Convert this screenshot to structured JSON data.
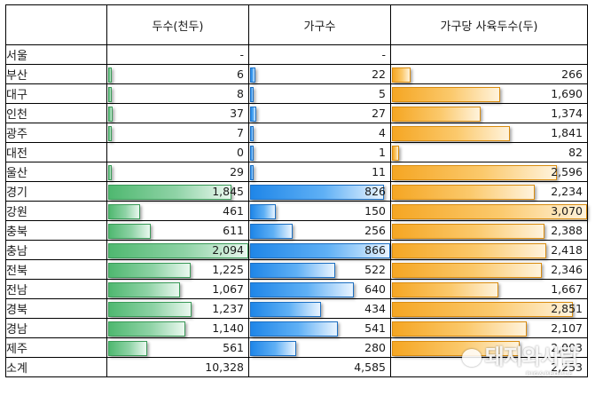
{
  "headers": [
    "",
    "두수(천두)",
    "가구수",
    "가구당 사육두수(두)"
  ],
  "rows": [
    {
      "region": "서울",
      "heads": "-",
      "households": "-",
      "per": ""
    },
    {
      "region": "부산",
      "heads": "6",
      "households": "22",
      "per": "266"
    },
    {
      "region": "대구",
      "heads": "8",
      "households": "5",
      "per": "1,690"
    },
    {
      "region": "인천",
      "heads": "37",
      "households": "27",
      "per": "1,374"
    },
    {
      "region": "광주",
      "heads": "7",
      "households": "4",
      "per": "1,841"
    },
    {
      "region": "대전",
      "heads": "0",
      "households": "1",
      "per": "82"
    },
    {
      "region": "울산",
      "heads": "29",
      "households": "11",
      "per": "2,596"
    },
    {
      "region": "경기",
      "heads": "1,845",
      "households": "826",
      "per": "2,234"
    },
    {
      "region": "강원",
      "heads": "461",
      "households": "150",
      "per": "3,070"
    },
    {
      "region": "충북",
      "heads": "611",
      "households": "256",
      "per": "2,388"
    },
    {
      "region": "충남",
      "heads": "2,094",
      "households": "866",
      "per": "2,418"
    },
    {
      "region": "전북",
      "heads": "1,225",
      "households": "522",
      "per": "2,346"
    },
    {
      "region": "전남",
      "heads": "1,067",
      "households": "640",
      "per": "1,667"
    },
    {
      "region": "경북",
      "heads": "1,237",
      "households": "434",
      "per": "2,851"
    },
    {
      "region": "경남",
      "heads": "1,140",
      "households": "541",
      "per": "2,107"
    },
    {
      "region": "제주",
      "heads": "561",
      "households": "280",
      "per": "2,003"
    },
    {
      "region": "소계",
      "heads": "10,328",
      "households": "4,585",
      "per": "2,253"
    }
  ],
  "data_bars": {
    "heads": {
      "color": "#4fb870",
      "max": 2094,
      "bar_rows": 16
    },
    "households": {
      "color": "#1f86e8",
      "max": 866,
      "bar_rows": 16
    },
    "per": {
      "color": "#f5a623",
      "max": 3070,
      "bar_rows": 16
    }
  },
  "watermark": {
    "text": "돼지와사람",
    "sub": "PIG&PEOPLE"
  }
}
